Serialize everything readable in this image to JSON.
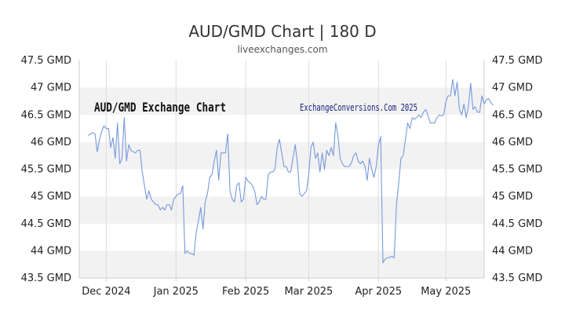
{
  "chart_data": {
    "type": "line",
    "title": "AUD/GMD Chart | 180 D",
    "subtitle": "liveexchanges.com",
    "watermark_left": "AUD/GMD Exchange Chart",
    "watermark_right": "ExchangeConversions.Com 2025",
    "ylim": [
      43.5,
      47.5
    ],
    "y_ticks": [
      {
        "value": 47.5,
        "label": "47.5 GMD"
      },
      {
        "value": 47,
        "label": "47 GMD"
      },
      {
        "value": 46.5,
        "label": "46.5 GMD"
      },
      {
        "value": 46,
        "label": "46 GMD"
      },
      {
        "value": 45.5,
        "label": "45.5 GMD"
      },
      {
        "value": 45,
        "label": "45 GMD"
      },
      {
        "value": 44.5,
        "label": "44.5 GMD"
      },
      {
        "value": 44,
        "label": "44 GMD"
      },
      {
        "value": 43.5,
        "label": "43.5 GMD"
      }
    ],
    "xlim": [
      0,
      180
    ],
    "x_ticks": [
      {
        "value": 12,
        "label": "Dec 2024"
      },
      {
        "value": 43,
        "label": "Jan 2025"
      },
      {
        "value": 74,
        "label": "Feb 2025"
      },
      {
        "value": 102,
        "label": "Mar 2025"
      },
      {
        "value": 133,
        "label": "Apr 2025"
      },
      {
        "value": 163,
        "label": "May 2025"
      }
    ],
    "grid": true,
    "colors": {
      "line": "#7799dd",
      "band": "#f2f2f2",
      "axis": "#cccccc",
      "text": "#222222",
      "watermark_right": "#1a237e"
    },
    "series": [
      {
        "values": [
          [
            4,
            46.12
          ],
          [
            5,
            46.15
          ],
          [
            6,
            46.17
          ],
          [
            7,
            46.15
          ],
          [
            8,
            45.82
          ],
          [
            9,
            46.05
          ],
          [
            10,
            46.2
          ],
          [
            11,
            46.3
          ],
          [
            12,
            46.25
          ],
          [
            13,
            46.25
          ],
          [
            14,
            45.9
          ],
          [
            15,
            46.08
          ],
          [
            16,
            45.7
          ],
          [
            17,
            46.35
          ],
          [
            18,
            45.6
          ],
          [
            19,
            45.7
          ],
          [
            20,
            46.45
          ],
          [
            21,
            45.65
          ],
          [
            22,
            45.95
          ],
          [
            23,
            45.85
          ],
          [
            24,
            45.82
          ],
          [
            25,
            45.8
          ],
          [
            26,
            45.85
          ],
          [
            27,
            45.85
          ],
          [
            28,
            45.45
          ],
          [
            29,
            45.2
          ],
          [
            30,
            44.95
          ],
          [
            31,
            45.1
          ],
          [
            32,
            44.95
          ],
          [
            33,
            44.9
          ],
          [
            34,
            44.85
          ],
          [
            35,
            44.85
          ],
          [
            36,
            44.75
          ],
          [
            37,
            44.8
          ],
          [
            38,
            44.75
          ],
          [
            39,
            44.85
          ],
          [
            40,
            44.85
          ],
          [
            41,
            44.75
          ],
          [
            42,
            44.95
          ],
          [
            43,
            45.0
          ],
          [
            44,
            45.05
          ],
          [
            45,
            45.05
          ],
          [
            46,
            45.2
          ],
          [
            47,
            43.95
          ],
          [
            48,
            44.0
          ],
          [
            49,
            43.95
          ],
          [
            50,
            43.95
          ],
          [
            51,
            43.92
          ],
          [
            52,
            44.35
          ],
          [
            53,
            44.55
          ],
          [
            54,
            44.8
          ],
          [
            55,
            44.4
          ],
          [
            56,
            44.9
          ],
          [
            57,
            45.05
          ],
          [
            58,
            45.35
          ],
          [
            59,
            45.4
          ],
          [
            60,
            45.65
          ],
          [
            61,
            45.85
          ],
          [
            62,
            45.3
          ],
          [
            63,
            45.8
          ],
          [
            64,
            45.8
          ],
          [
            65,
            45.8
          ],
          [
            66,
            46.15
          ],
          [
            67,
            45.1
          ],
          [
            68,
            44.95
          ],
          [
            69,
            44.9
          ],
          [
            70,
            45.2
          ],
          [
            71,
            45.25
          ],
          [
            72,
            44.9
          ],
          [
            73,
            44.95
          ],
          [
            74,
            45.35
          ],
          [
            75,
            45.28
          ],
          [
            76,
            45.25
          ],
          [
            77,
            45.2
          ],
          [
            78,
            45.1
          ],
          [
            79,
            44.85
          ],
          [
            80,
            44.9
          ],
          [
            81,
            45.0
          ],
          [
            82,
            44.95
          ],
          [
            83,
            44.95
          ],
          [
            84,
            45.4
          ],
          [
            85,
            45.45
          ],
          [
            86,
            45.45
          ],
          [
            87,
            45.5
          ],
          [
            88,
            45.9
          ],
          [
            89,
            46.05
          ],
          [
            90,
            45.8
          ],
          [
            91,
            45.55
          ],
          [
            92,
            45.55
          ],
          [
            93,
            45.45
          ],
          [
            94,
            45.45
          ],
          [
            95,
            45.7
          ],
          [
            96,
            45.95
          ],
          [
            97,
            45.6
          ],
          [
            98,
            45.05
          ],
          [
            99,
            45.0
          ],
          [
            100,
            45.05
          ],
          [
            101,
            45.1
          ],
          [
            102,
            45.4
          ],
          [
            103,
            45.9
          ],
          [
            104,
            46.0
          ],
          [
            105,
            45.7
          ],
          [
            106,
            45.8
          ],
          [
            107,
            45.45
          ],
          [
            108,
            45.8
          ],
          [
            109,
            45.5
          ],
          [
            110,
            45.85
          ],
          [
            111,
            45.75
          ],
          [
            112,
            45.9
          ],
          [
            113,
            45.75
          ],
          [
            114,
            46.35
          ],
          [
            115,
            46.1
          ],
          [
            116,
            45.7
          ],
          [
            117,
            45.6
          ],
          [
            118,
            45.55
          ],
          [
            119,
            45.55
          ],
          [
            120,
            45.55
          ],
          [
            121,
            45.62
          ],
          [
            122,
            45.75
          ],
          [
            123,
            45.8
          ],
          [
            124,
            45.65
          ],
          [
            125,
            45.6
          ],
          [
            126,
            45.65
          ],
          [
            127,
            45.55
          ],
          [
            128,
            45.3
          ],
          [
            129,
            45.7
          ],
          [
            130,
            45.5
          ],
          [
            131,
            45.35
          ],
          [
            132,
            45.55
          ],
          [
            133,
            45.95
          ],
          [
            134,
            46.1
          ],
          [
            135,
            43.78
          ],
          [
            136,
            43.85
          ],
          [
            137,
            43.87
          ],
          [
            138,
            43.88
          ],
          [
            139,
            43.9
          ],
          [
            140,
            43.87
          ],
          [
            141,
            44.85
          ],
          [
            142,
            45.25
          ],
          [
            143,
            45.7
          ],
          [
            144,
            45.75
          ],
          [
            145,
            46.05
          ],
          [
            146,
            46.35
          ],
          [
            147,
            46.25
          ],
          [
            148,
            46.45
          ],
          [
            149,
            46.42
          ],
          [
            150,
            46.45
          ],
          [
            151,
            46.5
          ],
          [
            152,
            46.45
          ],
          [
            153,
            46.55
          ],
          [
            154,
            46.6
          ],
          [
            155,
            46.5
          ],
          [
            156,
            46.35
          ],
          [
            157,
            46.35
          ],
          [
            158,
            46.35
          ],
          [
            159,
            46.45
          ],
          [
            160,
            46.5
          ],
          [
            161,
            46.48
          ],
          [
            162,
            46.5
          ],
          [
            163,
            46.75
          ],
          [
            164,
            46.85
          ],
          [
            165,
            46.85
          ],
          [
            166,
            47.15
          ],
          [
            167,
            46.85
          ],
          [
            168,
            47.1
          ],
          [
            169,
            46.6
          ],
          [
            170,
            46.5
          ],
          [
            171,
            46.7
          ],
          [
            172,
            46.45
          ],
          [
            173,
            46.65
          ],
          [
            174,
            47.08
          ],
          [
            175,
            46.6
          ],
          [
            176,
            46.65
          ],
          [
            177,
            46.55
          ],
          [
            178,
            46.55
          ],
          [
            179,
            46.85
          ],
          [
            180,
            46.7
          ],
          [
            181,
            46.78
          ],
          [
            182,
            46.8
          ],
          [
            183,
            46.72
          ],
          [
            184,
            46.68
          ]
        ]
      }
    ]
  }
}
